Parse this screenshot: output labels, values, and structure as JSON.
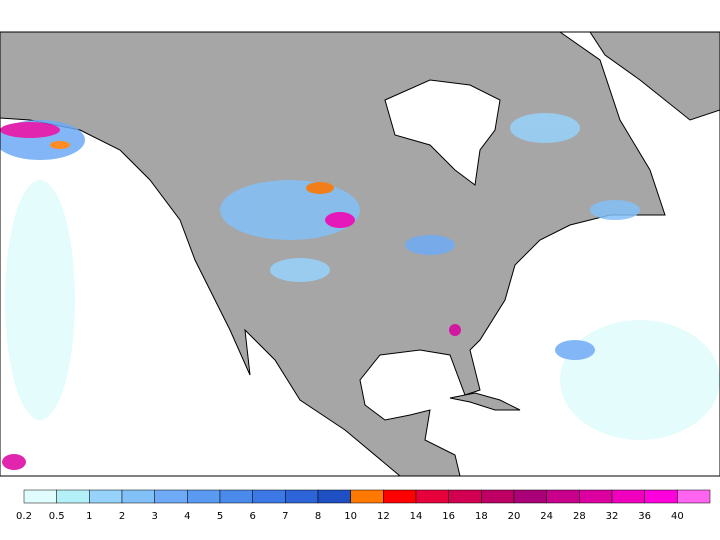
{
  "colorbar": {
    "labels": [
      0.2,
      0.5,
      1,
      2,
      3,
      4,
      5,
      6,
      7,
      8,
      10,
      12,
      14,
      16,
      18,
      20,
      24,
      28,
      32,
      36,
      40
    ],
    "colors": [
      "#e0fcfc",
      "#b4f0f8",
      "#96d2fa",
      "#82c0f8",
      "#6eaaf5",
      "#5a9af0",
      "#4a8aeb",
      "#3c78e6",
      "#2d64d7",
      "#1e50c3",
      "#ff7800",
      "#ff0000",
      "#e6003c",
      "#d20050",
      "#be0064",
      "#aa0078",
      "#c8008c",
      "#dc00a0",
      "#f000be",
      "#ff00dc",
      "#ff64f0"
    ]
  }
}
